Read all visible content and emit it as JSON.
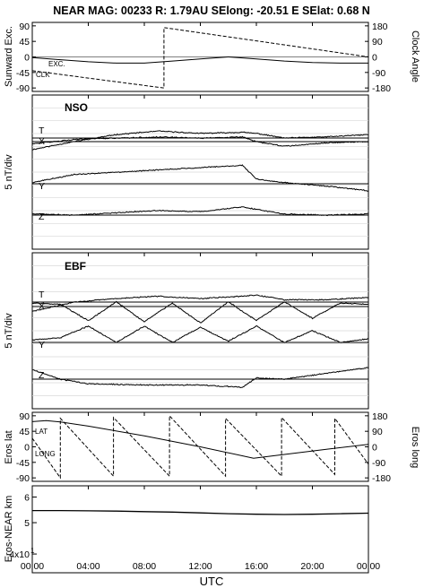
{
  "title": "NEAR MAG: 00233  R: 1.79AU  SElong:  -20.51 E  SElat:    0.68 N",
  "xlabel": "UTC",
  "x_ticks": [
    "00:00",
    "04:00",
    "08:00",
    "12:00",
    "16:00",
    "20:00",
    "00:00"
  ],
  "chart_data": [
    {
      "type": "line",
      "panel": "orientation",
      "ylabel": "Sunward Exc.",
      "ylabel_right": "Clock Angle",
      "y_ticks": [
        "90",
        "45",
        "0",
        "-45",
        "-90"
      ],
      "y2_ticks": [
        "180",
        "90",
        "0",
        "-90",
        "-180"
      ],
      "ylim": [
        -90,
        90
      ],
      "y2lim": [
        -180,
        180
      ],
      "labels": [
        "EXC.",
        "CLK"
      ],
      "series": [
        {
          "name": "EXC.",
          "axis": "left",
          "style": "solid",
          "x": [
            0,
            2,
            4,
            6,
            8,
            10,
            12,
            14,
            16,
            18,
            20,
            22,
            24
          ],
          "y": [
            -2,
            -8,
            -14,
            -18,
            -18,
            -12,
            -6,
            0,
            -6,
            -12,
            -16,
            -18,
            -18
          ]
        },
        {
          "name": "CLK",
          "axis": "right",
          "style": "dashed",
          "x": [
            0,
            9.4,
            9.4,
            24
          ],
          "y": [
            -80,
            -180,
            170,
            0
          ]
        }
      ]
    },
    {
      "type": "line",
      "panel": "NSO",
      "label": "NSO",
      "ylabel": "5 nT/div",
      "series": [
        {
          "name": "T",
          "x": [
            0,
            3,
            6,
            9,
            12,
            15,
            16,
            18,
            21,
            24
          ],
          "y": [
            -1.0,
            -0.3,
            0.3,
            0.6,
            0.4,
            0.5,
            0.4,
            0.0,
            0.1,
            0.3
          ]
        },
        {
          "name": "X",
          "x": [
            0,
            3,
            6,
            9,
            12,
            15,
            16,
            18,
            21,
            24
          ],
          "y": [
            -0.2,
            0.2,
            0.3,
            0.4,
            0.3,
            0.4,
            0.0,
            -0.4,
            -0.1,
            0.0
          ]
        },
        {
          "name": "Y",
          "x": [
            0,
            3,
            6,
            9,
            12,
            15,
            16,
            18,
            21,
            24
          ],
          "y": [
            0.1,
            0.8,
            1.0,
            1.2,
            1.4,
            1.6,
            0.4,
            0.1,
            -0.2,
            -0.6
          ]
        },
        {
          "name": "Z",
          "x": [
            0,
            3,
            6,
            9,
            12,
            15,
            18,
            21,
            24
          ],
          "y": [
            0.1,
            0.0,
            0.2,
            0.4,
            0.3,
            0.7,
            0.1,
            0.0,
            0.1
          ]
        }
      ]
    },
    {
      "type": "line",
      "panel": "EBF",
      "label": "EBF",
      "ylabel": "5 nT/div",
      "series": [
        {
          "name": "T",
          "x": [
            0,
            3,
            6,
            9,
            12,
            15,
            16,
            18,
            21,
            24
          ],
          "y": [
            -0.8,
            0.0,
            0.3,
            0.5,
            0.3,
            0.5,
            0.6,
            0.2,
            0.2,
            0.4
          ]
        },
        {
          "name": "X",
          "x": [
            0,
            2,
            4,
            6,
            8,
            10,
            12,
            14,
            16,
            18,
            20,
            22,
            24
          ],
          "y": [
            0.3,
            0.2,
            -1.2,
            0.4,
            -1.3,
            0.3,
            -1.4,
            0.4,
            -1.2,
            0.4,
            -1.0,
            0.3,
            0.2
          ]
        },
        {
          "name": "Y",
          "x": [
            0,
            2,
            4,
            6,
            8,
            10,
            12,
            14,
            16,
            18,
            20,
            22,
            24
          ],
          "y": [
            0.2,
            0.4,
            1.4,
            0.0,
            1.4,
            0.0,
            1.3,
            0.1,
            1.4,
            0.0,
            1.0,
            0.0,
            0.3
          ]
        },
        {
          "name": "Z",
          "x": [
            0,
            2,
            4,
            8,
            12,
            15,
            16,
            18,
            21,
            24
          ],
          "y": [
            0.8,
            0.0,
            -0.4,
            -0.5,
            -0.5,
            -0.7,
            0.1,
            0.0,
            0.5,
            1.0
          ]
        }
      ]
    },
    {
      "type": "line",
      "panel": "eros_position",
      "ylabel": "Eros lat",
      "ylabel_right": "Eros long",
      "y_ticks": [
        "90",
        "45",
        "0",
        "-45",
        "-90"
      ],
      "y2_ticks": [
        "180",
        "90",
        "0",
        "-90",
        "-180"
      ],
      "ylim": [
        -90,
        90
      ],
      "y2lim": [
        -180,
        180
      ],
      "labels": [
        "LAT",
        "LONG"
      ],
      "series": [
        {
          "name": "LAT",
          "axis": "left",
          "style": "solid",
          "x": [
            0,
            1,
            2,
            4,
            8,
            12,
            15.8,
            18,
            21,
            24
          ],
          "y": [
            73,
            76,
            72,
            60,
            32,
            0,
            -33,
            -22,
            -7,
            7
          ]
        },
        {
          "name": "LONG",
          "axis": "right",
          "style": "dashed",
          "x": [
            0,
            2,
            2,
            5.8,
            5.8,
            9.8,
            9.8,
            13.8,
            13.8,
            17.8,
            17.8,
            21.6,
            21.6,
            24
          ],
          "y": [
            50,
            -180,
            165,
            -170,
            170,
            -170,
            180,
            -170,
            165,
            -170,
            170,
            -160,
            165,
            -100
          ]
        }
      ]
    },
    {
      "type": "line",
      "panel": "distance",
      "ylabel": "Eros-NEAR km",
      "y_ticks": [
        "6",
        "5",
        "4x10"
      ],
      "y_tick_sup": "1",
      "ylim": [
        35,
        65
      ],
      "scale": "log",
      "series": [
        {
          "name": "range",
          "style": "solid",
          "x": [
            0,
            2,
            4,
            6,
            8,
            10,
            12,
            14,
            16,
            18,
            20,
            22,
            24
          ],
          "y": [
            54.5,
            54.5,
            54.4,
            54.3,
            54.1,
            53.9,
            53.6,
            53.3,
            53.1,
            53.0,
            53.1,
            53.3,
            53.5
          ]
        }
      ]
    }
  ]
}
